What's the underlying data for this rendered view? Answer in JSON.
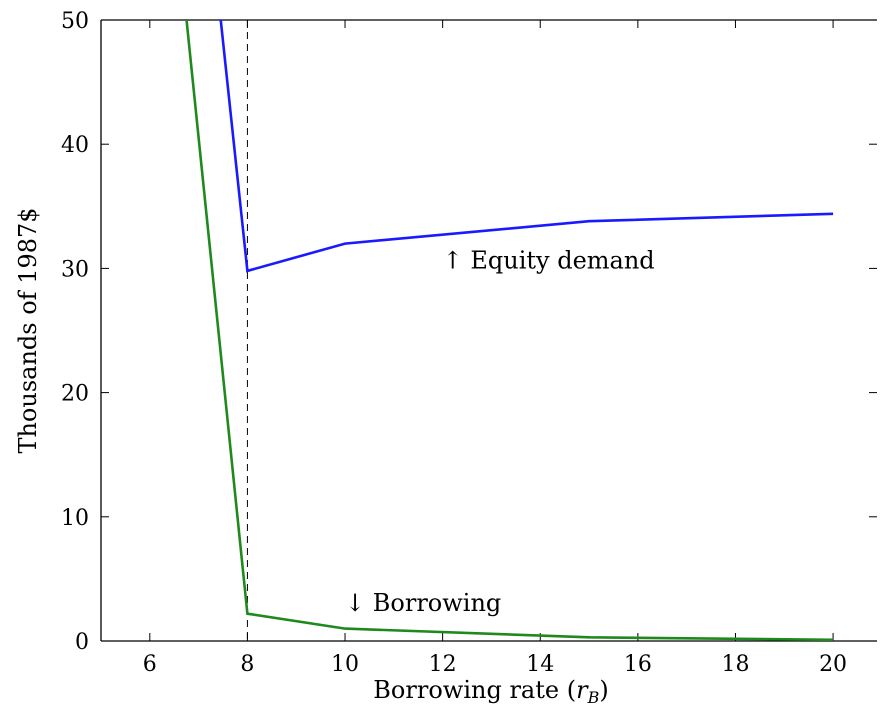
{
  "chart_data": {
    "type": "line",
    "title": "",
    "xlabel": "Borrowing rate (r_B)",
    "xlabel_parts": {
      "main": "Borrowing rate (",
      "var": "r",
      "sub": "B",
      "close": ")"
    },
    "ylabel": "Thousands of 1987$",
    "xlim": [
      5,
      20.9
    ],
    "ylim": [
      0,
      50
    ],
    "xticks": [
      6,
      8,
      10,
      12,
      14,
      16,
      18,
      20
    ],
    "yticks": [
      0,
      10,
      20,
      30,
      40,
      50
    ],
    "grid": false,
    "series": [
      {
        "label": "Equity demand",
        "color": "#1a1aff",
        "points": [
          [
            7.4,
            52
          ],
          [
            8,
            29.8
          ],
          [
            10,
            32.0
          ],
          [
            15,
            33.8
          ],
          [
            20,
            34.4
          ]
        ]
      },
      {
        "label": "Borrowing",
        "color": "#1e8a1e",
        "points": [
          [
            6.7,
            52
          ],
          [
            8,
            2.2
          ],
          [
            10,
            1.0
          ],
          [
            15,
            0.3
          ],
          [
            20,
            0.1
          ]
        ]
      }
    ],
    "reference_line": {
      "x": 8,
      "style": "dashed"
    },
    "annotations": [
      {
        "text": "↑ Equity demand",
        "x": 12.0,
        "y": 30
      },
      {
        "text": "↓ Borrowing",
        "x": 10.0,
        "y": 2.4
      }
    ]
  }
}
